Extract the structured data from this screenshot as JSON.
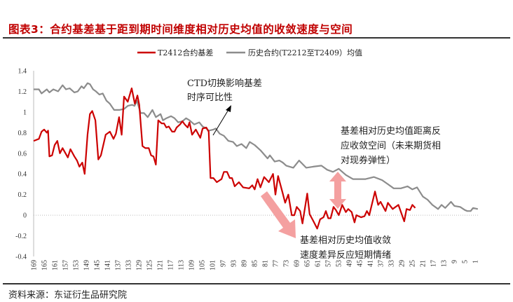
{
  "title": "图表3：合约基差基于距到期时间维度相对历史均值的收敛速度与空间",
  "source": "资料来源：东证衍生品研究院",
  "chart_data": {
    "type": "line",
    "xlabel": "",
    "ylabel": "",
    "xlim": [
      170,
      0
    ],
    "x_reversed": true,
    "ylim": [
      -0.4,
      1.4
    ],
    "yticks": [
      "1.4",
      "1.2",
      "1",
      "0.8",
      "0.6",
      "0.4",
      "0.2",
      "0",
      "-0.2",
      "-0.4"
    ],
    "xticks": [
      "169",
      "165",
      "161",
      "157",
      "153",
      "149",
      "145",
      "141",
      "137",
      "133",
      "129",
      "125",
      "121",
      "117",
      "113",
      "109",
      "105",
      "101",
      "97",
      "93",
      "89",
      "85",
      "81",
      "77",
      "73",
      "69",
      "65",
      "61",
      "57",
      "53",
      "49",
      "45",
      "41",
      "37",
      "33",
      "29",
      "25",
      "21",
      "17",
      "13",
      "9",
      "5",
      "1"
    ],
    "grid": false,
    "legend_position": "top",
    "zero_line": "dotted",
    "series": [
      {
        "name": "T2412合约基差",
        "color": "#cc0000",
        "points": [
          [
            169,
            0.72
          ],
          [
            167,
            0.74
          ],
          [
            166,
            0.81
          ],
          [
            165,
            0.83
          ],
          [
            164,
            0.8
          ],
          [
            163.5,
            0.82
          ],
          [
            163,
            0.57
          ],
          [
            162,
            0.58
          ],
          [
            161,
            0.68
          ],
          [
            160,
            0.72
          ],
          [
            159,
            0.6
          ],
          [
            158,
            0.65
          ],
          [
            156,
            0.56
          ],
          [
            155,
            0.64
          ],
          [
            153.5,
            0.57
          ],
          [
            152.5,
            0.53
          ],
          [
            151.6,
            0.47
          ],
          [
            150.5,
            0.51
          ],
          [
            149.6,
            0.4
          ],
          [
            148.5,
            0.78
          ],
          [
            147.6,
            0.98
          ],
          [
            146.7,
            1.01
          ],
          [
            145.5,
            0.92
          ],
          [
            144.4,
            0.54
          ],
          [
            143.4,
            0.58
          ],
          [
            141.6,
            0.78
          ],
          [
            140,
            0.81
          ],
          [
            138.6,
            0.74
          ],
          [
            137.7,
            0.79
          ],
          [
            136.5,
            0.95
          ],
          [
            135.5,
            0.78
          ],
          [
            134.6,
            1.15
          ],
          [
            133.2,
            1.1
          ],
          [
            131.7,
            1.23
          ],
          [
            130.5,
            1.08
          ],
          [
            129.5,
            1.16
          ],
          [
            128.8,
            1.07
          ],
          [
            127.6,
            0.67
          ],
          [
            126.5,
            0.65
          ],
          [
            125.2,
            0.65
          ],
          [
            124.3,
            0.58
          ],
          [
            123.4,
            0.57
          ],
          [
            122.5,
            0.49
          ],
          [
            121.6,
            0.92
          ],
          [
            120.3,
            0.89
          ],
          [
            119.4,
            0.89
          ],
          [
            118.5,
            0.85
          ],
          [
            117.6,
            0.86
          ],
          [
            116.3,
            0.81
          ],
          [
            115.4,
            0.81
          ],
          [
            114.6,
            0.85
          ],
          [
            113.3,
            0.88
          ],
          [
            112.4,
            0.91
          ],
          [
            111.5,
            0.88
          ],
          [
            110.4,
            0.85
          ],
          [
            109.7,
            0.9
          ],
          [
            108.7,
            0.78
          ],
          [
            107.3,
            0.83
          ],
          [
            105.6,
            0.75
          ],
          [
            104.7,
            0.84
          ],
          [
            103.3,
            0.85
          ],
          [
            102.4,
            0.81
          ],
          [
            101.7,
            0.36
          ],
          [
            100.6,
            0.36
          ],
          [
            99.3,
            0.32
          ],
          [
            97.5,
            0.35
          ],
          [
            96.6,
            0.42
          ],
          [
            95.4,
            0.42
          ],
          [
            94.4,
            0.36
          ],
          [
            93.5,
            0.36
          ],
          [
            92.5,
            0.28
          ],
          [
            90.9,
            0.32
          ],
          [
            89.3,
            0.27
          ],
          [
            87,
            0.26
          ],
          [
            85.8,
            0.29
          ],
          [
            84.9,
            0.25
          ],
          [
            83.8,
            0.35
          ],
          [
            82.7,
            0.27
          ],
          [
            81.3,
            0.37
          ],
          [
            79.5,
            0.32
          ],
          [
            77.9,
            0.4
          ],
          [
            77,
            0.2
          ],
          [
            76,
            0.38
          ],
          [
            74.2,
            0.21
          ],
          [
            73.3,
            0.12
          ],
          [
            72.1,
            0.2
          ],
          [
            70.8,
            0.0
          ],
          [
            69.8,
            0.0
          ],
          [
            68.9,
            0.08
          ],
          [
            67.6,
            0.04
          ],
          [
            66.7,
            -0.08
          ],
          [
            64.9,
            0.21
          ],
          [
            64,
            0.01
          ],
          [
            62.7,
            -0.05
          ],
          [
            61.1,
            -0.13
          ],
          [
            60,
            -0.04
          ],
          [
            58.7,
            -0.02
          ],
          [
            57.8,
            0.04
          ],
          [
            56.9,
            -0.03
          ],
          [
            56,
            -0.03
          ],
          [
            54.9,
            0.08
          ],
          [
            54,
            0.05
          ],
          [
            52.9,
            0.0
          ],
          [
            51.6,
            0.1
          ],
          [
            50.2,
            0.03
          ],
          [
            49.3,
            0.06
          ],
          [
            48,
            0.03
          ],
          [
            46.9,
            -0.07
          ],
          [
            46.2,
            0.0
          ],
          [
            44.4,
            -0.02
          ],
          [
            43.1,
            -0.01
          ],
          [
            42.2,
            0.04
          ],
          [
            41.3,
            0.0
          ],
          [
            39.1,
            0.23
          ],
          [
            37.9,
            0.1
          ],
          [
            37,
            0.13
          ],
          [
            35.1,
            0.04
          ],
          [
            34.2,
            0.12
          ],
          [
            32.4,
            0.06
          ],
          [
            30.2,
            0.1
          ],
          [
            28,
            -0.06
          ],
          [
            27.1,
            0.06
          ],
          [
            25.8,
            0.05
          ],
          [
            24.9,
            0.1
          ],
          [
            23.8,
            0.07
          ]
        ]
      },
      {
        "name": "历史合约(T2212至T2409）均值",
        "color": "#8c8c8c",
        "points": [
          [
            169,
            1.22
          ],
          [
            167,
            1.22
          ],
          [
            166,
            1.18
          ],
          [
            164,
            1.22
          ],
          [
            163,
            1.19
          ],
          [
            161.5,
            1.22
          ],
          [
            159.7,
            1.2
          ],
          [
            158,
            1.26
          ],
          [
            156.7,
            1.22
          ],
          [
            155.3,
            1.23
          ],
          [
            153.5,
            1.19
          ],
          [
            152.2,
            1.2
          ],
          [
            150.8,
            1.25
          ],
          [
            149.9,
            1.23
          ],
          [
            148.5,
            1.28
          ],
          [
            147.6,
            1.27
          ],
          [
            146.4,
            1.22
          ],
          [
            145.3,
            1.2
          ],
          [
            144,
            1.17
          ],
          [
            142.7,
            1.18
          ],
          [
            141.3,
            1.11
          ],
          [
            140,
            1.08
          ],
          [
            138.4,
            1.02
          ],
          [
            136.4,
            1.02
          ],
          [
            134.6,
            1.03
          ],
          [
            133.2,
            1.06
          ],
          [
            131.5,
            1.07
          ],
          [
            130.6,
            1.06
          ],
          [
            129.7,
            1.11
          ],
          [
            128.3,
            0.99
          ],
          [
            127,
            0.99
          ],
          [
            125.6,
            0.95
          ],
          [
            123.8,
            1.02
          ],
          [
            122.5,
            0.95
          ],
          [
            120.7,
            0.98
          ],
          [
            119.8,
            0.92
          ],
          [
            118.5,
            0.94
          ],
          [
            116.7,
            0.96
          ],
          [
            115.4,
            0.94
          ],
          [
            114,
            0.9
          ],
          [
            112.4,
            0.91
          ],
          [
            111,
            0.94
          ],
          [
            109.7,
            0.92
          ],
          [
            107.9,
            0.88
          ],
          [
            106,
            0.9
          ],
          [
            104.7,
            0.86
          ],
          [
            103.3,
            0.84
          ],
          [
            102.4,
            0.82
          ],
          [
            100.6,
            0.83
          ],
          [
            99.7,
            0.84
          ],
          [
            98.2,
            0.79
          ],
          [
            96.6,
            0.77
          ],
          [
            94.9,
            0.72
          ],
          [
            93.1,
            0.71
          ],
          [
            91.7,
            0.67
          ],
          [
            89.9,
            0.69
          ],
          [
            88.1,
            0.65
          ],
          [
            86.8,
            0.71
          ],
          [
            84.9,
            0.68
          ],
          [
            82.7,
            0.63
          ],
          [
            80,
            0.55
          ],
          [
            79.1,
            0.58
          ],
          [
            77.3,
            0.52
          ],
          [
            75.5,
            0.53
          ],
          [
            74.2,
            0.51
          ],
          [
            72.9,
            0.48
          ],
          [
            70.2,
            0.46
          ],
          [
            68,
            0.53
          ],
          [
            65.3,
            0.46
          ],
          [
            62.7,
            0.47
          ],
          [
            59.5,
            0.48
          ],
          [
            57.3,
            0.44
          ],
          [
            55.1,
            0.42
          ],
          [
            52.9,
            0.45
          ],
          [
            50.2,
            0.39
          ],
          [
            47.5,
            0.35
          ],
          [
            45.3,
            0.35
          ],
          [
            42.7,
            0.35
          ],
          [
            39.5,
            0.37
          ],
          [
            36.4,
            0.34
          ],
          [
            34.2,
            0.3
          ],
          [
            32,
            0.26
          ],
          [
            29.3,
            0.26
          ],
          [
            26.7,
            0.28
          ],
          [
            24.9,
            0.25
          ],
          [
            23.1,
            0.27
          ],
          [
            20.9,
            0.18
          ],
          [
            19.1,
            0.15
          ],
          [
            17.3,
            0.1
          ],
          [
            15.1,
            0.06
          ],
          [
            13.8,
            0.1
          ],
          [
            12.4,
            0.07
          ],
          [
            10.2,
            0.13
          ],
          [
            8.9,
            0.09
          ],
          [
            6.7,
            0.08
          ],
          [
            4.9,
            0.05
          ],
          [
            4,
            0.04
          ],
          [
            2.7,
            0.04
          ],
          [
            1.8,
            0.07
          ],
          [
            0,
            0.06
          ]
        ]
      }
    ],
    "annotations": [
      {
        "lines": [
          "CTD切换影响基差",
          "时序可比性"
        ],
        "arrow": "black-line-arrow"
      },
      {
        "lines": [
          "基差相对历史均值距离反",
          "应收敛空间（未来期货相",
          "对现券弹性）"
        ],
        "arrow": "pink-double-arrow"
      },
      {
        "lines": [
          "基差相对历史均值收敛",
          "速度差异反应短期情绪"
        ],
        "arrow": "pink-diagonal-arrow"
      }
    ],
    "annotation_arrow_color": "#f4a0a0"
  }
}
